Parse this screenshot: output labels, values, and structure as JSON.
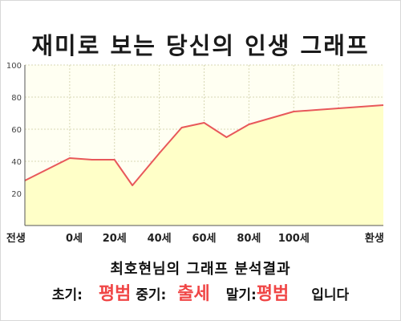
{
  "title": "재미로 보는 당신의 인생 그래프",
  "chart_data": {
    "type": "area",
    "title": "재미로 보는 당신의 인생 그래프",
    "xlabel": "",
    "ylabel": "",
    "x": [
      -10,
      0,
      5,
      10,
      14,
      20,
      25,
      30,
      35,
      40,
      45,
      50,
      55,
      60,
      65,
      70
    ],
    "values": [
      28,
      42,
      41,
      41,
      25,
      45,
      61,
      64,
      55,
      63,
      67,
      71,
      72,
      73,
      74,
      75
    ],
    "x_ticks": [
      "전생",
      "0세",
      "20세",
      "40세",
      "60세",
      "80세",
      "100세",
      "환생"
    ],
    "y_ticks": [
      "20",
      "40",
      "60",
      "80",
      "100"
    ],
    "ylim": [
      0,
      100
    ],
    "grid": true,
    "colors": {
      "line": "#e8585a",
      "fill": "#ffffc8",
      "grid": "#d7d7b4"
    }
  },
  "summary": {
    "title": "최호현님의 그래프 분석결과",
    "early_label": "초기:",
    "early_value": "평범",
    "middle_label": "중기:",
    "middle_value": "출세",
    "late_label": "말기:",
    "late_value": "평범",
    "suffix": "입니다"
  }
}
